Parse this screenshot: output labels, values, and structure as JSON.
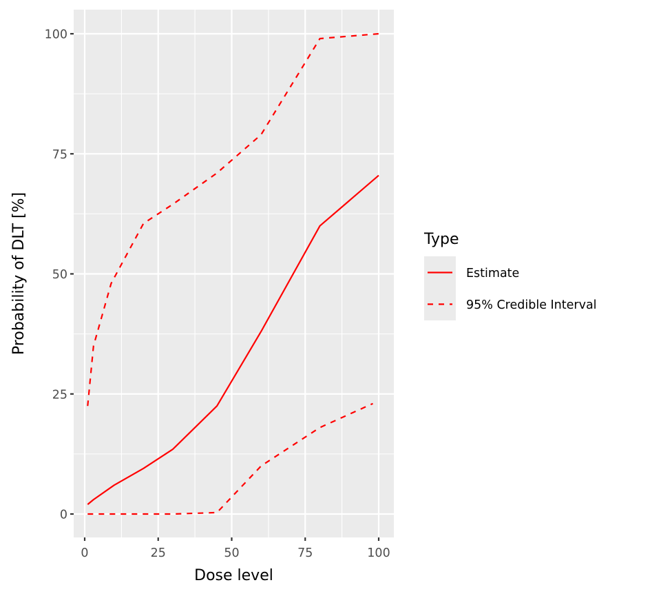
{
  "chart_data": {
    "type": "line",
    "title": "",
    "xlabel": "Dose level",
    "ylabel": "Probability of DLT [%]",
    "xlim": [
      -3,
      105
    ],
    "ylim": [
      -5,
      105
    ],
    "x_ticks": [
      0,
      25,
      50,
      75,
      100
    ],
    "y_ticks": [
      0,
      25,
      50,
      75,
      100
    ],
    "grid": true,
    "legend_position": "right",
    "legend": {
      "title": "Type",
      "entries": [
        {
          "label": "Estimate",
          "linetype": "solid",
          "color": "#ff0000"
        },
        {
          "label": "95% Credible Interval",
          "linetype": "dashed",
          "color": "#ff0000"
        }
      ]
    },
    "series": [
      {
        "name": "Estimate",
        "linetype": "solid",
        "color": "#ff0000",
        "x": [
          1,
          3,
          10,
          20,
          30,
          45,
          60,
          80,
          100
        ],
        "y": [
          2,
          3,
          6,
          9.5,
          13.5,
          22.5,
          38,
          60,
          70.5
        ]
      },
      {
        "name": "95% Credible Interval (upper)",
        "linetype": "dashed",
        "color": "#ff0000",
        "x": [
          1,
          3,
          9,
          20,
          30,
          45,
          60,
          80,
          100
        ],
        "y": [
          22.5,
          35,
          48,
          60.5,
          64.5,
          71,
          79,
          99,
          100
        ]
      },
      {
        "name": "95% Credible Interval (lower)",
        "linetype": "dashed",
        "color": "#ff0000",
        "x": [
          1,
          20,
          30,
          45,
          60,
          80,
          98
        ],
        "y": [
          0,
          0,
          0,
          0.3,
          10,
          18,
          23
        ]
      }
    ]
  },
  "colors": {
    "panel_bg": "#ebebeb",
    "grid_major": "#ffffff",
    "line": "#ff0000",
    "tick_text": "#4d4d4d",
    "tick_mark": "#333333"
  }
}
